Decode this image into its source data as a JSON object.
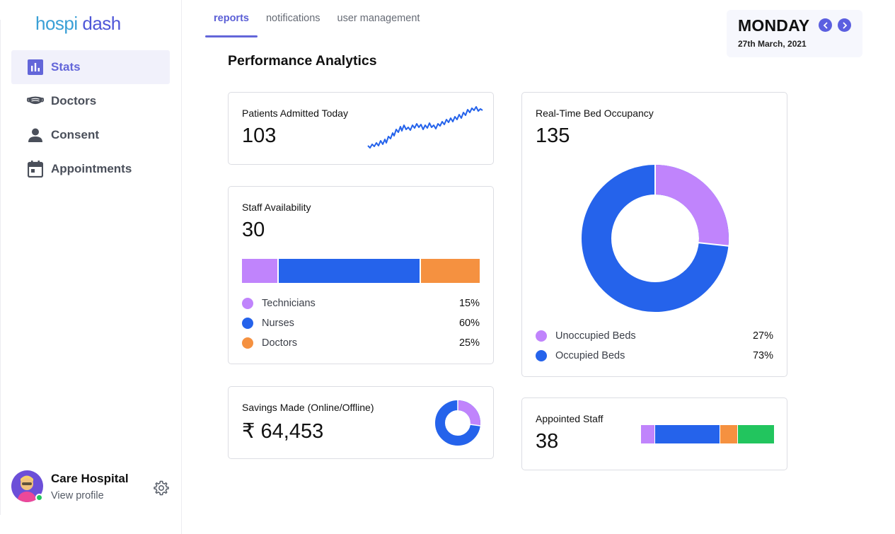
{
  "logo": {
    "part1": "hospi",
    "part2": "dash"
  },
  "sidebar": {
    "items": [
      {
        "label": "Stats",
        "icon": "bar-chart-icon",
        "active": true
      },
      {
        "label": "Doctors",
        "icon": "mask-icon",
        "active": false
      },
      {
        "label": "Consent",
        "icon": "user-icon",
        "active": false
      },
      {
        "label": "Appointments",
        "icon": "calendar-icon",
        "active": false
      }
    ]
  },
  "profile": {
    "name": "Care Hospital",
    "link": "View profile",
    "status": "online"
  },
  "tabs": [
    {
      "label": "reports",
      "active": true
    },
    {
      "label": "notifications",
      "active": false
    },
    {
      "label": "user management",
      "active": false
    }
  ],
  "date_widget": {
    "day": "MONDAY",
    "date": "27th March, 2021"
  },
  "page_title": "Performance Analytics",
  "colors": {
    "accent": "#6366d9",
    "purple": "#c084fc",
    "blue": "#2563eb",
    "orange": "#f59140",
    "green": "#22c55e"
  },
  "cards": {
    "patients": {
      "title": "Patients Admitted Today",
      "value": "103"
    },
    "staff": {
      "title": "Staff Availability",
      "value": "30",
      "legend": [
        {
          "label": "Technicians",
          "pct": "15%",
          "value": 15,
          "color": "#c084fc"
        },
        {
          "label": "Nurses",
          "pct": "60%",
          "value": 60,
          "color": "#2563eb"
        },
        {
          "label": "Doctors",
          "pct": "25%",
          "value": 25,
          "color": "#f59140"
        }
      ]
    },
    "savings": {
      "title": "Savings Made (Online/Offline)",
      "value": "₹ 64,453"
    },
    "beds": {
      "title": "Real-Time Bed Occupancy",
      "value": "135",
      "legend": [
        {
          "label": "Unoccupied Beds",
          "pct": "27%",
          "value": 27,
          "color": "#c084fc"
        },
        {
          "label": "Occupied Beds",
          "pct": "73%",
          "value": 73,
          "color": "#2563eb"
        }
      ]
    },
    "appointed": {
      "title": "Appointed Staff",
      "value": "38"
    }
  }
}
